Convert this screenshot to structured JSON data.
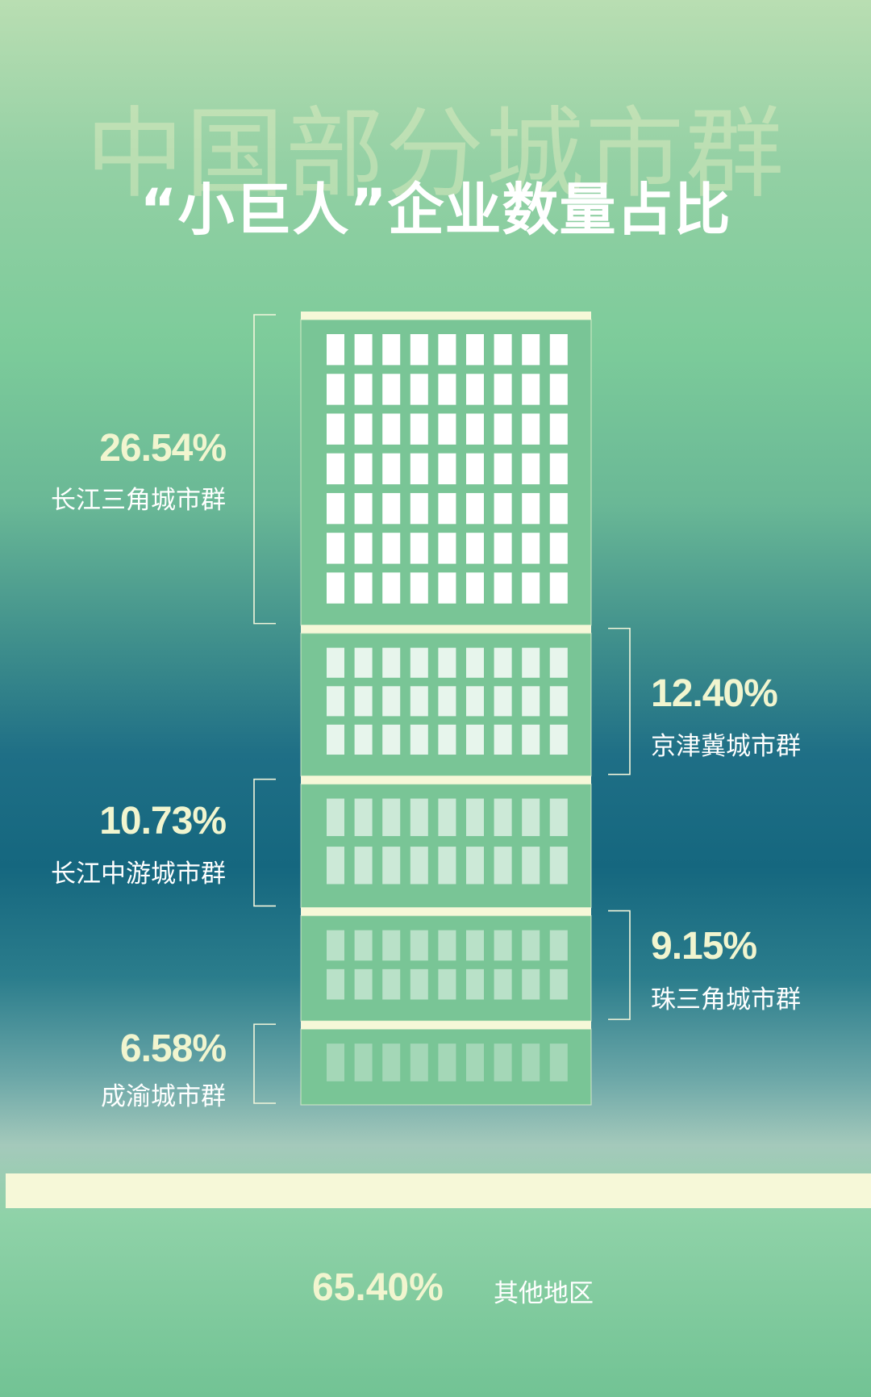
{
  "background_title": "中国部分城市群",
  "title": "“小巨人”企业数量占比",
  "colors": {
    "accent": "#f6f8d8",
    "label_value": "#f1f5cf",
    "label_name": "#ffffff",
    "building": "#79c596"
  },
  "chart_data": {
    "type": "bar",
    "title": "中国部分城市群“小巨人”企业数量占比",
    "unit": "%",
    "categories": [
      "长江三角城市群",
      "京津冀城市群",
      "长江中游城市群",
      "珠三角城市群",
      "成渝城市群",
      "其他地区"
    ],
    "values": [
      26.54,
      12.4,
      10.73,
      9.15,
      6.58,
      65.4
    ],
    "value_labels": [
      "26.54%",
      "12.40%",
      "10.73%",
      "9.15%",
      "6.58%",
      "65.40%"
    ],
    "label_side": [
      "left",
      "right",
      "left",
      "right",
      "left",
      "bottom"
    ]
  }
}
